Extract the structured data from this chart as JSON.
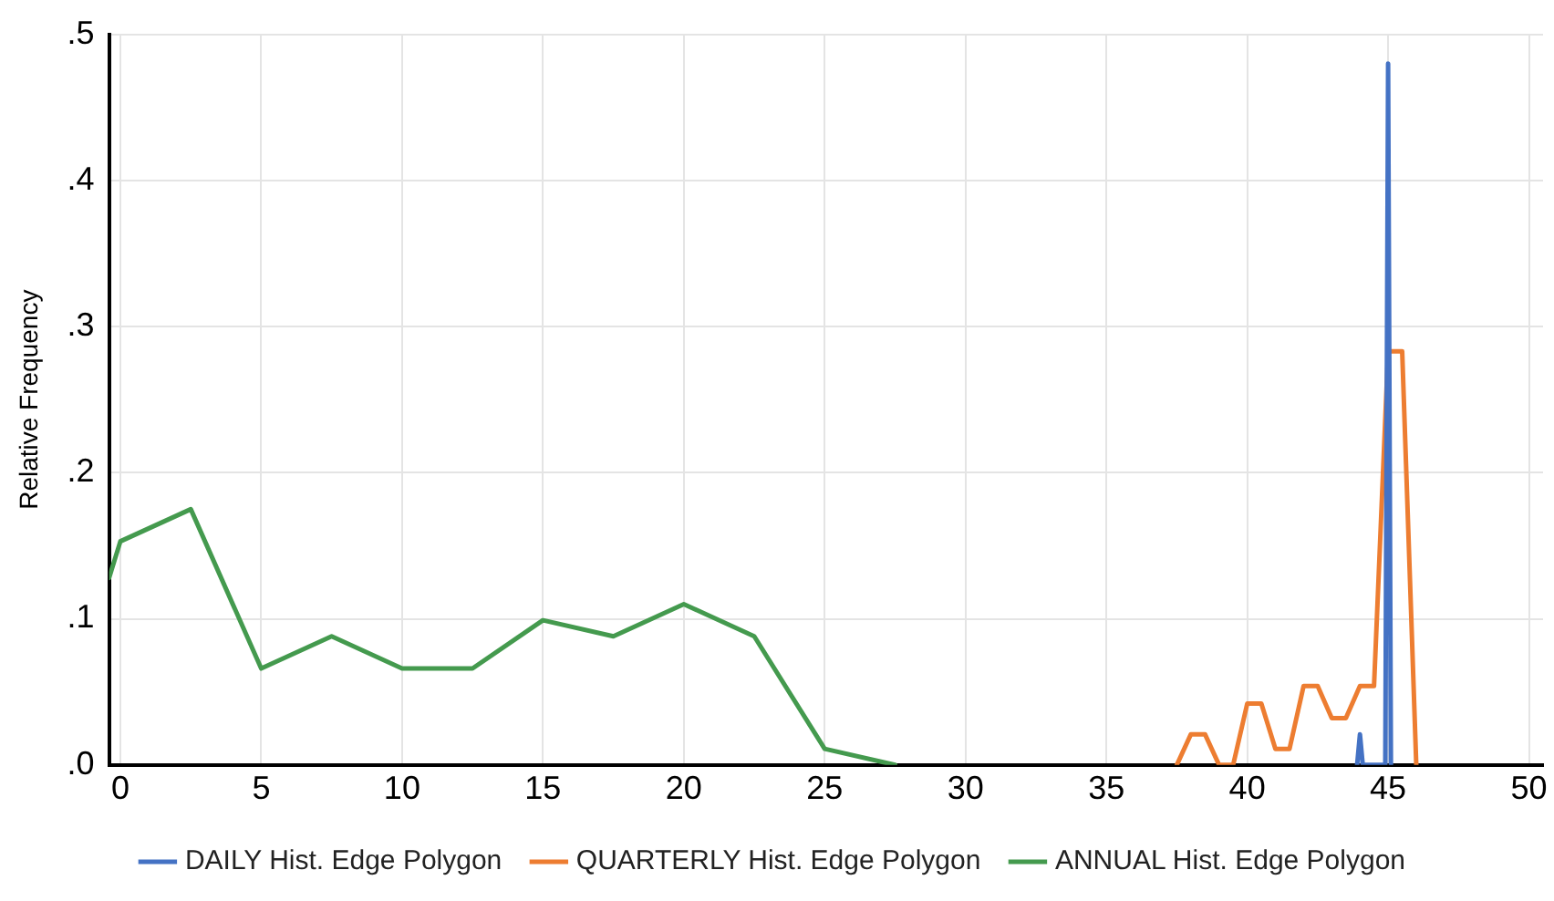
{
  "chart_data": {
    "type": "line",
    "ylabel": "Relative Frequency",
    "xlim": [
      -0.4,
      50.5
    ],
    "xticks": [
      0,
      5,
      10,
      15,
      20,
      25,
      30,
      35,
      40,
      45,
      50
    ],
    "ylim": [
      0,
      0.5
    ],
    "yticks": [
      {
        "value": 0,
        "label": ".0"
      },
      {
        "value": 0.1,
        "label": ".1"
      },
      {
        "value": 0.2,
        "label": ".2"
      },
      {
        "value": 0.3,
        "label": ".3"
      },
      {
        "value": 0.4,
        "label": ".4"
      },
      {
        "value": 0.5,
        "label": ".5"
      }
    ],
    "grid": true,
    "legend": "bottom",
    "marker": "none",
    "line_style": "solid",
    "series": [
      {
        "name": "DAILY Hist. Edge Polygon",
        "color": "#4472c4",
        "x": [
          43.9,
          44,
          44.1,
          44.9,
          45,
          45.1
        ],
        "values": [
          0,
          0.021,
          0,
          0,
          0.48,
          0
        ]
      },
      {
        "name": "QUARTERLY Hist. Edge Polygon",
        "color": "#ed7d31",
        "x": [
          37.5,
          38,
          38.5,
          39,
          39.5,
          40,
          40.5,
          41,
          41.5,
          42,
          42.5,
          43,
          43.5,
          44,
          44.5,
          45,
          45.5,
          46
        ],
        "values": [
          0,
          0.021,
          0.021,
          0,
          0,
          0.042,
          0.042,
          0.011,
          0.011,
          0.054,
          0.054,
          0.032,
          0.032,
          0.054,
          0.054,
          0.283,
          0.283,
          0
        ]
      },
      {
        "name": "ANNUAL Hist. Edge Polygon",
        "color": "#449a4e",
        "x": [
          -0.4,
          0,
          2.5,
          5,
          7.5,
          10,
          12.5,
          15,
          17.5,
          20,
          22.5,
          25,
          27.5
        ],
        "values": [
          0.128,
          0.153,
          0.175,
          0.066,
          0.088,
          0.066,
          0.066,
          0.099,
          0.088,
          0.11,
          0.088,
          0.011,
          0
        ]
      }
    ]
  }
}
